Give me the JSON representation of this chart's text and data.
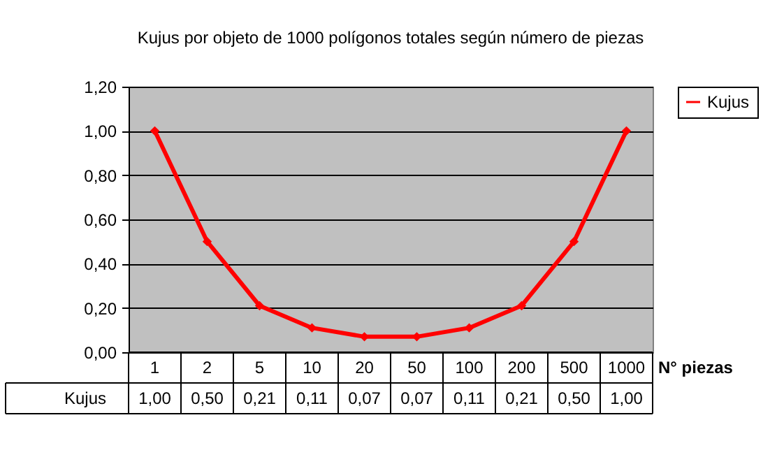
{
  "chart_data": {
    "type": "line",
    "title": "Kujus por objeto de 1000 polígonos totales según número de piezas",
    "xlabel": "N° piezas",
    "categories": [
      "1",
      "2",
      "5",
      "10",
      "20",
      "50",
      "100",
      "200",
      "500",
      "1000"
    ],
    "series": [
      {
        "name": "Kujus",
        "color": "#ff0000",
        "values": [
          1.0,
          0.5,
          0.21,
          0.11,
          0.07,
          0.07,
          0.11,
          0.21,
          0.5,
          1.0
        ],
        "value_labels": [
          "1,00",
          "0,50",
          "0,21",
          "0,11",
          "0,07",
          "0,07",
          "0,11",
          "0,21",
          "0,50",
          "1,00"
        ]
      }
    ],
    "ylim": [
      0,
      1.2
    ],
    "yticks": [
      {
        "value": 0,
        "label": "0,00"
      },
      {
        "value": 0.2,
        "label": "0,20"
      },
      {
        "value": 0.4,
        "label": "0,40"
      },
      {
        "value": 0.6,
        "label": "0,60"
      },
      {
        "value": 0.8,
        "label": "0,80"
      },
      {
        "value": 1.0,
        "label": "1,00"
      },
      {
        "value": 1.2,
        "label": "1,20"
      }
    ],
    "grid": "y",
    "legend": "right",
    "marker": "diamond",
    "line_style": "solid"
  }
}
